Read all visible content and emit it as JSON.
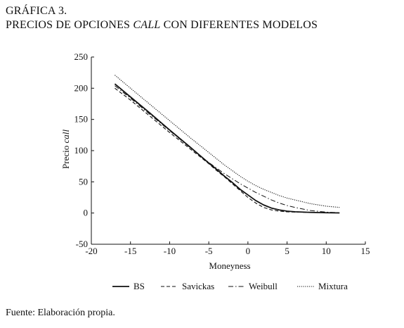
{
  "figure": {
    "number": "GRÁFICA 3.",
    "title_pre": "PRECIOS DE OPCIONES ",
    "title_italic": "CALL",
    "title_post": " CON DIFERENTES MODELOS"
  },
  "source": "Fuente: Elaboración propia.",
  "chart_data": {
    "type": "line",
    "xlabel": "Moneyness",
    "ylabel_pre": "Precio ",
    "ylabel_italic": "call",
    "xlim": [
      -20,
      15
    ],
    "ylim": [
      -50,
      250
    ],
    "xticks": [
      -20,
      -15,
      -10,
      -5,
      0,
      5,
      10,
      15
    ],
    "yticks": [
      -50,
      0,
      50,
      100,
      150,
      200,
      250
    ],
    "grid": false,
    "legend_position": "bottom",
    "series": [
      {
        "name": "BS",
        "style": "solid",
        "x": [
          -17,
          -15,
          -12.5,
          -10,
          -7.5,
          -5,
          -4,
          -3,
          -2,
          -1,
          0,
          1,
          2,
          3,
          4,
          5,
          6,
          8,
          10,
          11.7
        ],
        "y": [
          207,
          186,
          160,
          133,
          107,
          80,
          70,
          59,
          49,
          38,
          29,
          20,
          13,
          8,
          5,
          3,
          2,
          1,
          0.5,
          0.2
        ]
      },
      {
        "name": "Savickas",
        "style": "dashed",
        "x": [
          -17,
          -15,
          -12.5,
          -10,
          -7.5,
          -5,
          -4,
          -3,
          -2,
          -1,
          0,
          1,
          2,
          3,
          4,
          5,
          6,
          8,
          10,
          11.7
        ],
        "y": [
          200,
          181,
          155,
          129,
          104,
          79,
          68,
          58,
          47,
          36,
          25,
          16,
          9,
          5,
          3,
          2,
          1.5,
          1,
          0.5,
          0.2
        ]
      },
      {
        "name": "Weibull",
        "style": "dashdot",
        "x": [
          -17,
          -15,
          -12.5,
          -10,
          -7.5,
          -5,
          -4,
          -3,
          -2,
          -1,
          0,
          1,
          2,
          3,
          4,
          5,
          6,
          8,
          10,
          11.7
        ],
        "y": [
          204,
          184,
          158,
          132,
          106,
          81,
          72,
          63,
          55,
          47,
          40,
          33,
          27,
          21,
          16,
          12,
          9,
          4,
          1.5,
          0.5
        ]
      },
      {
        "name": "Mixtura",
        "style": "dotted",
        "x": [
          -17,
          -15,
          -12.5,
          -10,
          -7.5,
          -5,
          -4,
          -3,
          -2,
          -1,
          0,
          1,
          2,
          3,
          4,
          5,
          6,
          8,
          10,
          11.7
        ],
        "y": [
          221,
          200,
          174,
          148,
          122,
          97,
          87,
          77,
          68,
          59,
          51,
          44,
          38,
          33,
          28,
          24,
          21,
          15,
          11,
          9
        ]
      }
    ]
  }
}
